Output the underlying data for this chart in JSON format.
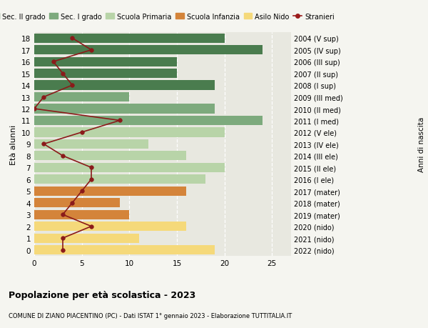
{
  "ages": [
    18,
    17,
    16,
    15,
    14,
    13,
    12,
    11,
    10,
    9,
    8,
    7,
    6,
    5,
    4,
    3,
    2,
    1,
    0
  ],
  "right_labels": [
    "2004 (V sup)",
    "2005 (IV sup)",
    "2006 (III sup)",
    "2007 (II sup)",
    "2008 (I sup)",
    "2009 (III med)",
    "2010 (II med)",
    "2011 (I med)",
    "2012 (V ele)",
    "2013 (IV ele)",
    "2014 (III ele)",
    "2015 (II ele)",
    "2016 (I ele)",
    "2017 (mater)",
    "2018 (mater)",
    "2019 (mater)",
    "2020 (nido)",
    "2021 (nido)",
    "2022 (nido)"
  ],
  "bar_values": [
    20,
    24,
    15,
    15,
    19,
    10,
    19,
    24,
    20,
    12,
    16,
    20,
    18,
    16,
    9,
    10,
    16,
    11,
    19
  ],
  "bar_colors": [
    "#4a7c4e",
    "#4a7c4e",
    "#4a7c4e",
    "#4a7c4e",
    "#4a7c4e",
    "#7daa7d",
    "#7daa7d",
    "#7daa7d",
    "#b8d4a8",
    "#b8d4a8",
    "#b8d4a8",
    "#b8d4a8",
    "#b8d4a8",
    "#d4843a",
    "#d4843a",
    "#d4843a",
    "#f5d97a",
    "#f5d97a",
    "#f5d97a"
  ],
  "stranieri_values": [
    4,
    6,
    2,
    3,
    4,
    1,
    0,
    9,
    5,
    1,
    3,
    6,
    6,
    5,
    4,
    3,
    6,
    3,
    3
  ],
  "legend_labels": [
    "Sec. II grado",
    "Sec. I grado",
    "Scuola Primaria",
    "Scuola Infanzia",
    "Asilo Nido",
    "Stranieri"
  ],
  "legend_colors": [
    "#4a7c4e",
    "#7daa7d",
    "#b8d4a8",
    "#d4843a",
    "#f5d97a",
    "#9b1c1c"
  ],
  "title": "Popolazione per età scolastica - 2023",
  "subtitle": "COMUNE DI ZIANO PIACENTINO (PC) - Dati ISTAT 1° gennaio 2023 - Elaborazione TUTTITALIA.IT",
  "ylabel_left": "Età alunni",
  "ylabel_right": "Anni di nascita",
  "xlim": [
    0,
    27
  ],
  "background_color": "#f5f5f0",
  "bar_background": "#e8e8e0",
  "grid_color": "#ffffff",
  "stranieri_color": "#8b1a1a"
}
